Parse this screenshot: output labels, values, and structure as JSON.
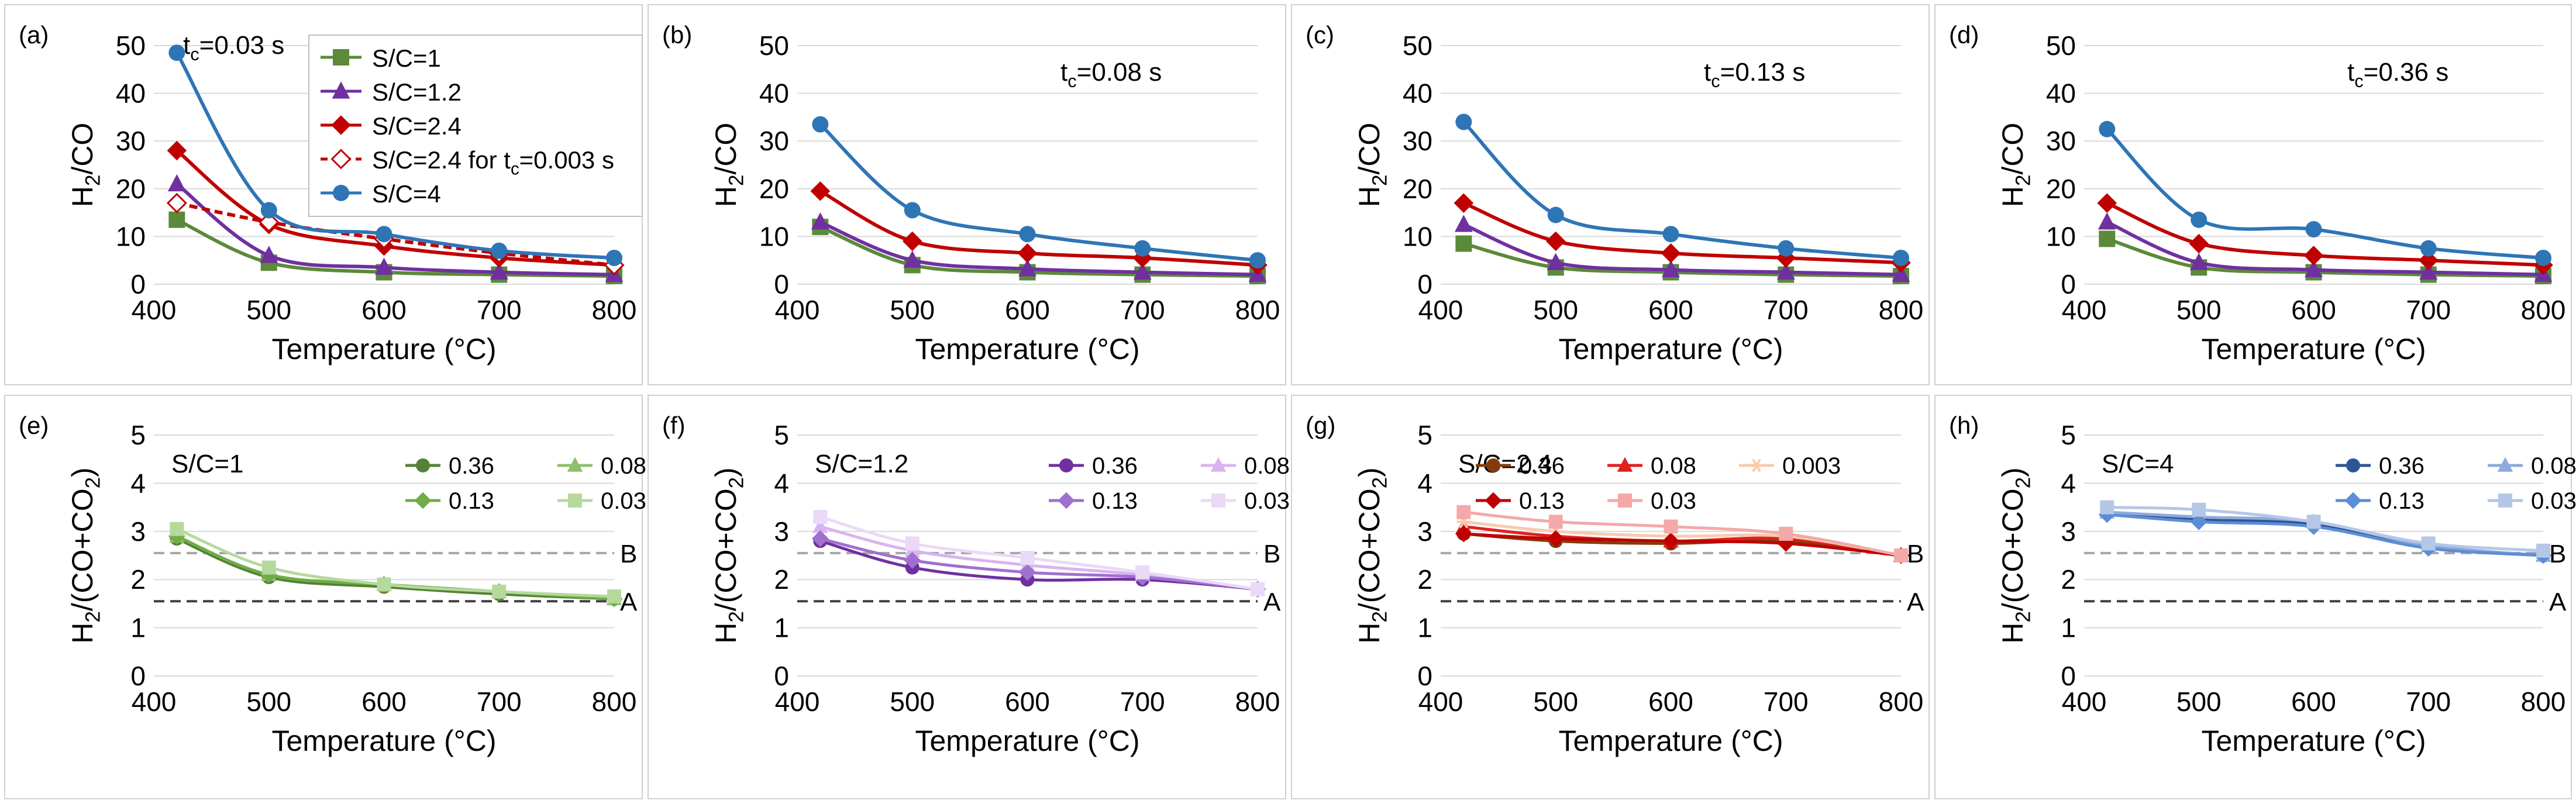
{
  "chart_data": [
    {
      "type": "line",
      "panel_label": "(a)",
      "annotation": "t",
      "annotation_sub": "c",
      "annotation_rest": "=0.03 s",
      "xlabel": "Temperature (°C)",
      "ylabel_parts": [
        "H",
        "2",
        "/CO"
      ],
      "xlim": [
        400,
        800
      ],
      "ylim": [
        0,
        50
      ],
      "xticks": [
        400,
        500,
        600,
        700,
        800
      ],
      "yticks": [
        0,
        10,
        20,
        30,
        40,
        50
      ],
      "x": [
        420,
        500,
        600,
        700,
        800
      ],
      "series": [
        {
          "name": "S/C=1",
          "color": "#5b8a3a",
          "marker": "square",
          "values": [
            13.5,
            4.5,
            2.5,
            2.0,
            1.7
          ]
        },
        {
          "name": "S/C=1.2",
          "color": "#7030a0",
          "marker": "triangle",
          "values": [
            21.0,
            6.0,
            3.5,
            2.5,
            2.0
          ]
        },
        {
          "name": "S/C=2.4",
          "color": "#c00000",
          "marker": "diamond",
          "values": [
            28.0,
            12.5,
            8.0,
            5.5,
            4.0
          ]
        },
        {
          "name": "S/C=2.4 for tc=0.003 s",
          "legend_parts": [
            "S/C=2.4 for t",
            "c",
            "=0.003 s"
          ],
          "color": "#c00000",
          "marker": "diamond-open",
          "dashed": true,
          "values": [
            17.0,
            13.0,
            9.5,
            6.5,
            4.0
          ]
        },
        {
          "name": "S/C=4",
          "color": "#2e75b6",
          "marker": "circle",
          "values": [
            48.5,
            15.5,
            10.5,
            7.0,
            5.5
          ]
        }
      ],
      "legend": "boxed"
    },
    {
      "type": "line",
      "panel_label": "(b)",
      "annotation": "t",
      "annotation_sub": "c",
      "annotation_rest": "=0.08 s",
      "xlabel": "Temperature (°C)",
      "ylabel_parts": [
        "H",
        "2",
        "/CO"
      ],
      "xlim": [
        400,
        800
      ],
      "ylim": [
        0,
        50
      ],
      "xticks": [
        400,
        500,
        600,
        700,
        800
      ],
      "yticks": [
        0,
        10,
        20,
        30,
        40,
        50
      ],
      "x": [
        420,
        500,
        600,
        700,
        800
      ],
      "series": [
        {
          "name": "S/C=1",
          "color": "#5b8a3a",
          "marker": "square",
          "values": [
            12.0,
            4.0,
            2.5,
            2.0,
            1.7
          ]
        },
        {
          "name": "S/C=1.2",
          "color": "#7030a0",
          "marker": "triangle",
          "values": [
            13.0,
            5.0,
            3.2,
            2.5,
            2.0
          ]
        },
        {
          "name": "S/C=2.4",
          "color": "#c00000",
          "marker": "diamond",
          "values": [
            19.5,
            9.0,
            6.5,
            5.5,
            4.0
          ]
        },
        {
          "name": "S/C=4",
          "color": "#2e75b6",
          "marker": "circle",
          "values": [
            33.5,
            15.5,
            10.5,
            7.5,
            5.0
          ]
        }
      ]
    },
    {
      "type": "line",
      "panel_label": "(c)",
      "annotation": "t",
      "annotation_sub": "c",
      "annotation_rest": "=0.13 s",
      "xlabel": "Temperature (°C)",
      "ylabel_parts": [
        "H",
        "2",
        "/CO"
      ],
      "xlim": [
        400,
        800
      ],
      "ylim": [
        0,
        50
      ],
      "xticks": [
        400,
        500,
        600,
        700,
        800
      ],
      "yticks": [
        0,
        10,
        20,
        30,
        40,
        50
      ],
      "x": [
        420,
        500,
        600,
        700,
        800
      ],
      "series": [
        {
          "name": "S/C=1",
          "color": "#5b8a3a",
          "marker": "square",
          "values": [
            8.5,
            3.5,
            2.5,
            2.0,
            1.7
          ]
        },
        {
          "name": "S/C=1.2",
          "color": "#7030a0",
          "marker": "triangle",
          "values": [
            12.5,
            4.5,
            3.0,
            2.5,
            2.0
          ]
        },
        {
          "name": "S/C=2.4",
          "color": "#c00000",
          "marker": "diamond",
          "values": [
            17.0,
            9.0,
            6.5,
            5.5,
            4.5
          ]
        },
        {
          "name": "S/C=4",
          "color": "#2e75b6",
          "marker": "circle",
          "values": [
            34.0,
            14.5,
            10.5,
            7.5,
            5.5
          ]
        }
      ]
    },
    {
      "type": "line",
      "panel_label": "(d)",
      "annotation": "t",
      "annotation_sub": "c",
      "annotation_rest": "=0.36 s",
      "xlabel": "Temperature (°C)",
      "ylabel_parts": [
        "H",
        "2",
        "/CO"
      ],
      "xlim": [
        400,
        800
      ],
      "ylim": [
        0,
        50
      ],
      "xticks": [
        400,
        500,
        600,
        700,
        800
      ],
      "yticks": [
        0,
        10,
        20,
        30,
        40,
        50
      ],
      "x": [
        420,
        500,
        600,
        700,
        800
      ],
      "series": [
        {
          "name": "S/C=1",
          "color": "#5b8a3a",
          "marker": "square",
          "values": [
            9.5,
            3.5,
            2.5,
            2.0,
            1.7
          ]
        },
        {
          "name": "S/C=1.2",
          "color": "#7030a0",
          "marker": "triangle",
          "values": [
            13.0,
            4.5,
            3.0,
            2.5,
            2.0
          ]
        },
        {
          "name": "S/C=2.4",
          "color": "#c00000",
          "marker": "diamond",
          "values": [
            17.0,
            8.5,
            6.0,
            5.0,
            4.0
          ]
        },
        {
          "name": "S/C=4",
          "color": "#2e75b6",
          "marker": "circle",
          "values": [
            32.5,
            13.5,
            11.5,
            7.5,
            5.5
          ]
        }
      ]
    },
    {
      "type": "line",
      "panel_label": "(e)",
      "annotation": "S/C=1",
      "xlabel": "Temperature (°C)",
      "ylabel_parts": [
        "H",
        "2",
        "/(CO+CO",
        "2",
        ")"
      ],
      "xlim": [
        400,
        800
      ],
      "ylim": [
        0,
        5
      ],
      "xticks": [
        400,
        500,
        600,
        700,
        800
      ],
      "yticks": [
        0,
        1,
        2,
        3,
        4,
        5
      ],
      "x": [
        420,
        500,
        600,
        700,
        800
      ],
      "reference_lines": [
        {
          "label": "B",
          "value": 2.55,
          "color": "#a6a6a6"
        },
        {
          "label": "A",
          "value": 1.55,
          "color": "#404040"
        }
      ],
      "legend": "grid-2col",
      "series": [
        {
          "name": "0.36",
          "color": "#548235",
          "marker": "circle",
          "values": [
            2.85,
            2.05,
            1.85,
            1.7,
            1.6
          ]
        },
        {
          "name": "0.08",
          "color": "#8fbf6e",
          "marker": "triangle",
          "values": [
            2.9,
            2.1,
            1.9,
            1.75,
            1.6
          ]
        },
        {
          "name": "0.13",
          "color": "#70ad47",
          "marker": "diamond",
          "values": [
            2.9,
            2.1,
            1.9,
            1.75,
            1.6
          ]
        },
        {
          "name": "0.03",
          "color": "#b5d99c",
          "marker": "square",
          "values": [
            3.05,
            2.25,
            1.9,
            1.75,
            1.65
          ]
        }
      ]
    },
    {
      "type": "line",
      "panel_label": "(f)",
      "annotation": "S/C=1.2",
      "xlabel": "Temperature (°C)",
      "ylabel_parts": [
        "H",
        "2",
        "/(CO+CO",
        "2",
        ")"
      ],
      "xlim": [
        400,
        800
      ],
      "ylim": [
        0,
        5
      ],
      "xticks": [
        400,
        500,
        600,
        700,
        800
      ],
      "yticks": [
        0,
        1,
        2,
        3,
        4,
        5
      ],
      "x": [
        420,
        500,
        600,
        700,
        800
      ],
      "reference_lines": [
        {
          "label": "B",
          "value": 2.55,
          "color": "#a6a6a6"
        },
        {
          "label": "A",
          "value": 1.55,
          "color": "#404040"
        }
      ],
      "legend": "grid-2col",
      "series": [
        {
          "name": "0.36",
          "color": "#7030a0",
          "marker": "circle",
          "values": [
            2.8,
            2.25,
            2.0,
            2.0,
            1.8
          ]
        },
        {
          "name": "0.08",
          "color": "#d9b3f0",
          "marker": "triangle",
          "values": [
            3.1,
            2.6,
            2.3,
            2.1,
            1.8
          ]
        },
        {
          "name": "0.13",
          "color": "#a070d0",
          "marker": "diamond",
          "values": [
            2.85,
            2.4,
            2.15,
            2.05,
            1.8
          ]
        },
        {
          "name": "0.03",
          "color": "#ead9f7",
          "marker": "square",
          "values": [
            3.3,
            2.75,
            2.45,
            2.15,
            1.8
          ]
        }
      ]
    },
    {
      "type": "line",
      "panel_label": "(g)",
      "annotation": "S/C=2.4",
      "xlabel": "Temperature (°C)",
      "ylabel_parts": [
        "H",
        "2",
        "/(CO+CO",
        "2",
        ")"
      ],
      "xlim": [
        400,
        800
      ],
      "ylim": [
        0,
        5
      ],
      "xticks": [
        400,
        500,
        600,
        700,
        800
      ],
      "yticks": [
        0,
        1,
        2,
        3,
        4,
        5
      ],
      "x": [
        420,
        500,
        600,
        700,
        800
      ],
      "reference_lines": [
        {
          "label": "B",
          "value": 2.55,
          "color": "#a6a6a6"
        },
        {
          "label": "A",
          "value": 1.55,
          "color": "#404040"
        }
      ],
      "legend": "grid-3col",
      "series": [
        {
          "name": "0.36",
          "color": "#843c0c",
          "marker": "circle",
          "values": [
            2.95,
            2.8,
            2.75,
            2.8,
            2.5
          ]
        },
        {
          "name": "0.08",
          "color": "#e02020",
          "marker": "triangle",
          "values": [
            3.1,
            2.9,
            2.8,
            2.85,
            2.5
          ]
        },
        {
          "name": "0.003",
          "color": "#f8cbad",
          "marker": "star",
          "values": [
            3.2,
            3.0,
            2.9,
            2.9,
            2.5
          ]
        },
        {
          "name": "0.13",
          "color": "#c00000",
          "marker": "diamond",
          "values": [
            2.95,
            2.85,
            2.8,
            2.75,
            2.5
          ]
        },
        {
          "name": "0.03",
          "color": "#f4a8a8",
          "marker": "square",
          "values": [
            3.4,
            3.2,
            3.1,
            2.95,
            2.5
          ]
        }
      ]
    },
    {
      "type": "line",
      "panel_label": "(h)",
      "annotation": "S/C=4",
      "xlabel": "Temperature (°C)",
      "ylabel_parts": [
        "H",
        "2",
        "/(CO+CO",
        "2",
        ")"
      ],
      "xlim": [
        400,
        800
      ],
      "ylim": [
        0,
        5
      ],
      "xticks": [
        400,
        500,
        600,
        700,
        800
      ],
      "yticks": [
        0,
        1,
        2,
        3,
        4,
        5
      ],
      "x": [
        420,
        500,
        600,
        700,
        800
      ],
      "reference_lines": [
        {
          "label": "B",
          "value": 2.55,
          "color": "#a6a6a6"
        },
        {
          "label": "A",
          "value": 1.55,
          "color": "#404040"
        }
      ],
      "legend": "grid-2col",
      "series": [
        {
          "name": "0.36",
          "color": "#2f5597",
          "marker": "circle",
          "values": [
            3.4,
            3.25,
            3.15,
            2.7,
            2.5
          ]
        },
        {
          "name": "0.08",
          "color": "#8faadc",
          "marker": "triangle",
          "values": [
            3.4,
            3.3,
            3.2,
            2.7,
            2.5
          ]
        },
        {
          "name": "0.13",
          "color": "#5b8ed6",
          "marker": "diamond",
          "values": [
            3.35,
            3.2,
            3.1,
            2.65,
            2.5
          ]
        },
        {
          "name": "0.03",
          "color": "#b4c7e7",
          "marker": "square",
          "values": [
            3.5,
            3.45,
            3.2,
            2.75,
            2.6
          ]
        }
      ]
    }
  ]
}
